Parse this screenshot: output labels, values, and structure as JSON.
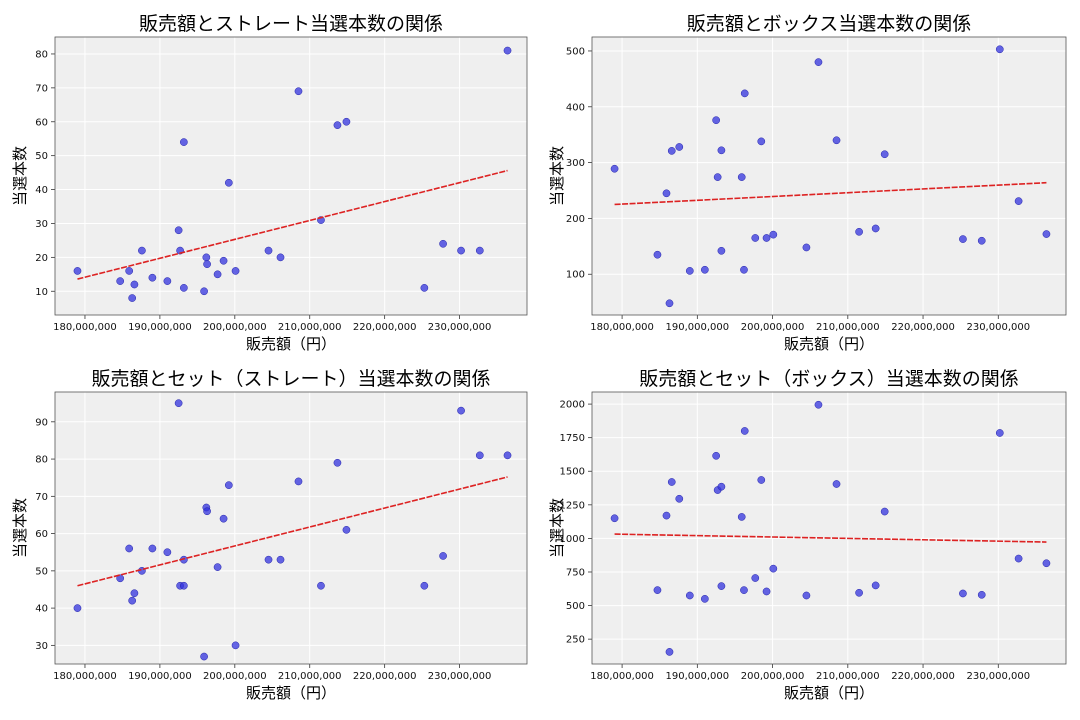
{
  "chart_data": [
    {
      "type": "scatter",
      "title": "販売額とストレート当選本数の関係",
      "xlabel": "販売額（円）",
      "ylabel": "当選本数",
      "xlim": [
        176000000,
        239000000
      ],
      "ylim": [
        3,
        85
      ],
      "xticks": [
        180000000,
        190000000,
        200000000,
        210000000,
        220000000,
        230000000
      ],
      "xtick_labels": [
        "180,000,000",
        "190,000,000",
        "200,000,000",
        "210,000,000",
        "220,000,000",
        "230,000,000"
      ],
      "yticks": [
        10,
        20,
        30,
        40,
        50,
        60,
        70,
        80
      ],
      "ytick_labels": [
        "10",
        "20",
        "30",
        "40",
        "50",
        "60",
        "70",
        "80"
      ],
      "grid": true,
      "colors": {
        "points": "#3333dd",
        "trend": "#dd2222",
        "background": "#efefef"
      },
      "points": [
        {
          "x": 179000000,
          "y": 16
        },
        {
          "x": 184700000,
          "y": 13
        },
        {
          "x": 185900000,
          "y": 16
        },
        {
          "x": 186300000,
          "y": 8
        },
        {
          "x": 186600000,
          "y": 12
        },
        {
          "x": 187600000,
          "y": 22
        },
        {
          "x": 189000000,
          "y": 14
        },
        {
          "x": 191000000,
          "y": 13
        },
        {
          "x": 192500000,
          "y": 28
        },
        {
          "x": 192700000,
          "y": 22
        },
        {
          "x": 193200000,
          "y": 11
        },
        {
          "x": 193200000,
          "y": 54
        },
        {
          "x": 195900000,
          "y": 10
        },
        {
          "x": 196200000,
          "y": 20
        },
        {
          "x": 196300000,
          "y": 18
        },
        {
          "x": 197700000,
          "y": 15
        },
        {
          "x": 198500000,
          "y": 19
        },
        {
          "x": 199200000,
          "y": 42
        },
        {
          "x": 200100000,
          "y": 16
        },
        {
          "x": 204500000,
          "y": 22
        },
        {
          "x": 206100000,
          "y": 20
        },
        {
          "x": 208500000,
          "y": 69
        },
        {
          "x": 211500000,
          "y": 31
        },
        {
          "x": 213700000,
          "y": 59
        },
        {
          "x": 214900000,
          "y": 60
        },
        {
          "x": 225300000,
          "y": 11
        },
        {
          "x": 227800000,
          "y": 24
        },
        {
          "x": 230200000,
          "y": 22
        },
        {
          "x": 232700000,
          "y": 22
        },
        {
          "x": 236400000,
          "y": 81
        }
      ],
      "trend": {
        "x": [
          179000000,
          236400000
        ],
        "y": [
          13.6,
          45.6
        ]
      }
    },
    {
      "type": "scatter",
      "title": "販売額とボックス当選本数の関係",
      "xlabel": "販売額（円）",
      "ylabel": "当選本数",
      "xlim": [
        176000000,
        239000000
      ],
      "ylim": [
        27,
        525
      ],
      "xticks": [
        180000000,
        190000000,
        200000000,
        210000000,
        220000000,
        230000000
      ],
      "xtick_labels": [
        "180,000,000",
        "190,000,000",
        "200,000,000",
        "210,000,000",
        "220,000,000",
        "230,000,000"
      ],
      "yticks": [
        100,
        200,
        300,
        400,
        500
      ],
      "ytick_labels": [
        "100",
        "200",
        "300",
        "400",
        "500"
      ],
      "grid": true,
      "colors": {
        "points": "#3333dd",
        "trend": "#dd2222",
        "background": "#efefef"
      },
      "points": [
        {
          "x": 179000000,
          "y": 289
        },
        {
          "x": 184700000,
          "y": 135
        },
        {
          "x": 185900000,
          "y": 245
        },
        {
          "x": 186300000,
          "y": 48
        },
        {
          "x": 186600000,
          "y": 321
        },
        {
          "x": 187600000,
          "y": 328
        },
        {
          "x": 189000000,
          "y": 106
        },
        {
          "x": 191000000,
          "y": 108
        },
        {
          "x": 192500000,
          "y": 376
        },
        {
          "x": 192700000,
          "y": 274
        },
        {
          "x": 193200000,
          "y": 142
        },
        {
          "x": 193200000,
          "y": 322
        },
        {
          "x": 195900000,
          "y": 274
        },
        {
          "x": 196200000,
          "y": 108
        },
        {
          "x": 196300000,
          "y": 424
        },
        {
          "x": 197700000,
          "y": 165
        },
        {
          "x": 198500000,
          "y": 338
        },
        {
          "x": 199200000,
          "y": 165
        },
        {
          "x": 200100000,
          "y": 171
        },
        {
          "x": 204500000,
          "y": 148
        },
        {
          "x": 206100000,
          "y": 480
        },
        {
          "x": 208500000,
          "y": 340
        },
        {
          "x": 211500000,
          "y": 176
        },
        {
          "x": 213700000,
          "y": 182
        },
        {
          "x": 214900000,
          "y": 315
        },
        {
          "x": 225300000,
          "y": 163
        },
        {
          "x": 227800000,
          "y": 160
        },
        {
          "x": 230200000,
          "y": 503
        },
        {
          "x": 232700000,
          "y": 231
        },
        {
          "x": 236400000,
          "y": 172
        }
      ],
      "trend": {
        "x": [
          179000000,
          236400000
        ],
        "y": [
          225,
          264
        ]
      }
    },
    {
      "type": "scatter",
      "title": "販売額とセット（ストレート）当選本数の関係",
      "xlabel": "販売額（円）",
      "ylabel": "当選本数",
      "xlim": [
        176000000,
        239000000
      ],
      "ylim": [
        25,
        98
      ],
      "xticks": [
        180000000,
        190000000,
        200000000,
        210000000,
        220000000,
        230000000
      ],
      "xtick_labels": [
        "180,000,000",
        "190,000,000",
        "200,000,000",
        "210,000,000",
        "220,000,000",
        "230,000,000"
      ],
      "yticks": [
        30,
        40,
        50,
        60,
        70,
        80,
        90
      ],
      "ytick_labels": [
        "30",
        "40",
        "50",
        "60",
        "70",
        "80",
        "90"
      ],
      "grid": true,
      "colors": {
        "points": "#3333dd",
        "trend": "#dd2222",
        "background": "#efefef"
      },
      "points": [
        {
          "x": 179000000,
          "y": 40
        },
        {
          "x": 184700000,
          "y": 48
        },
        {
          "x": 185900000,
          "y": 56
        },
        {
          "x": 186300000,
          "y": 42
        },
        {
          "x": 186600000,
          "y": 44
        },
        {
          "x": 187600000,
          "y": 50
        },
        {
          "x": 189000000,
          "y": 56
        },
        {
          "x": 191000000,
          "y": 55
        },
        {
          "x": 192500000,
          "y": 95
        },
        {
          "x": 192700000,
          "y": 46
        },
        {
          "x": 193200000,
          "y": 46
        },
        {
          "x": 193200000,
          "y": 53
        },
        {
          "x": 195900000,
          "y": 27
        },
        {
          "x": 196200000,
          "y": 67
        },
        {
          "x": 196300000,
          "y": 66
        },
        {
          "x": 197700000,
          "y": 51
        },
        {
          "x": 198500000,
          "y": 64
        },
        {
          "x": 199200000,
          "y": 73
        },
        {
          "x": 200100000,
          "y": 30
        },
        {
          "x": 204500000,
          "y": 53
        },
        {
          "x": 206100000,
          "y": 53
        },
        {
          "x": 208500000,
          "y": 74
        },
        {
          "x": 211500000,
          "y": 46
        },
        {
          "x": 213700000,
          "y": 79
        },
        {
          "x": 214900000,
          "y": 61
        },
        {
          "x": 225300000,
          "y": 46
        },
        {
          "x": 227800000,
          "y": 54
        },
        {
          "x": 230200000,
          "y": 93
        },
        {
          "x": 232700000,
          "y": 81
        },
        {
          "x": 236400000,
          "y": 81
        }
      ],
      "trend": {
        "x": [
          179000000,
          236400000
        ],
        "y": [
          46,
          75.2
        ]
      }
    },
    {
      "type": "scatter",
      "title": "販売額とセット（ボックス）当選本数の関係",
      "xlabel": "販売額（円）",
      "ylabel": "当選本数",
      "xlim": [
        176000000,
        239000000
      ],
      "ylim": [
        65,
        2090
      ],
      "xticks": [
        180000000,
        190000000,
        200000000,
        210000000,
        220000000,
        230000000
      ],
      "xtick_labels": [
        "180,000,000",
        "190,000,000",
        "200,000,000",
        "210,000,000",
        "220,000,000",
        "230,000,000"
      ],
      "yticks": [
        250,
        500,
        750,
        1000,
        1250,
        1500,
        1750,
        2000
      ],
      "ytick_labels": [
        "250",
        "500",
        "750",
        "1000",
        "1250",
        "1500",
        "1750",
        "2000"
      ],
      "grid": true,
      "colors": {
        "points": "#3333dd",
        "trend": "#dd2222",
        "background": "#efefef"
      },
      "points": [
        {
          "x": 179000000,
          "y": 1150
        },
        {
          "x": 184700000,
          "y": 615
        },
        {
          "x": 185900000,
          "y": 1170
        },
        {
          "x": 186300000,
          "y": 155
        },
        {
          "x": 186600000,
          "y": 1420
        },
        {
          "x": 187600000,
          "y": 1295
        },
        {
          "x": 189000000,
          "y": 575
        },
        {
          "x": 191000000,
          "y": 550
        },
        {
          "x": 192500000,
          "y": 1615
        },
        {
          "x": 192700000,
          "y": 1360
        },
        {
          "x": 193200000,
          "y": 645
        },
        {
          "x": 193200000,
          "y": 1385
        },
        {
          "x": 195900000,
          "y": 1160
        },
        {
          "x": 196200000,
          "y": 615
        },
        {
          "x": 196300000,
          "y": 1800
        },
        {
          "x": 197700000,
          "y": 705
        },
        {
          "x": 198500000,
          "y": 1435
        },
        {
          "x": 199200000,
          "y": 605
        },
        {
          "x": 200100000,
          "y": 775
        },
        {
          "x": 204500000,
          "y": 575
        },
        {
          "x": 206100000,
          "y": 1995
        },
        {
          "x": 208500000,
          "y": 1405
        },
        {
          "x": 211500000,
          "y": 595
        },
        {
          "x": 213700000,
          "y": 650
        },
        {
          "x": 214900000,
          "y": 1200
        },
        {
          "x": 225300000,
          "y": 590
        },
        {
          "x": 227800000,
          "y": 580
        },
        {
          "x": 230200000,
          "y": 1785
        },
        {
          "x": 232700000,
          "y": 850
        },
        {
          "x": 236400000,
          "y": 815
        }
      ],
      "trend": {
        "x": [
          179000000,
          236400000
        ],
        "y": [
          1032,
          973
        ]
      }
    }
  ]
}
